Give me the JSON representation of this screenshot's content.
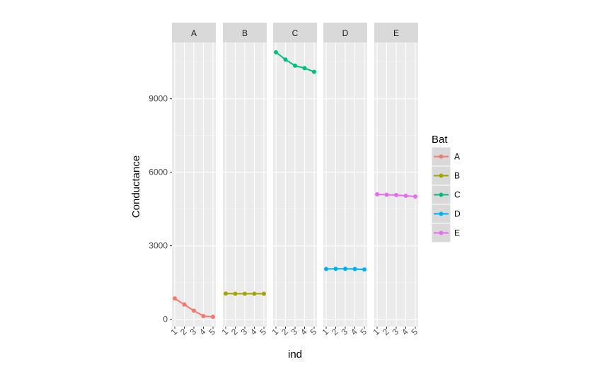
{
  "chart_data": {
    "type": "line",
    "facet_var": "Bat",
    "facets": [
      "A",
      "B",
      "C",
      "D",
      "E"
    ],
    "x_ticks": [
      "1",
      "2",
      "3",
      "4",
      "5"
    ],
    "xlabel": "ind",
    "ylabel": "Conductance",
    "y_ticks": [
      0,
      3000,
      6000,
      9000
    ],
    "ylim": [
      -300,
      11300
    ],
    "legend": {
      "title": "Bat",
      "placement": "right",
      "entries": [
        "A",
        "B",
        "C",
        "D",
        "E"
      ]
    },
    "series": [
      {
        "name": "A",
        "color": "#F8766D",
        "values": [
          850,
          600,
          350,
          130,
          100
        ]
      },
      {
        "name": "B",
        "color": "#A3A500",
        "values": [
          1050,
          1040,
          1040,
          1040,
          1040
        ]
      },
      {
        "name": "C",
        "color": "#00BF7D",
        "values": [
          10900,
          10600,
          10350,
          10250,
          10100
        ]
      },
      {
        "name": "D",
        "color": "#00B0F6",
        "values": [
          2050,
          2060,
          2060,
          2050,
          2030
        ]
      },
      {
        "name": "E",
        "color": "#E76BF3",
        "values": [
          5100,
          5080,
          5070,
          5040,
          5010
        ]
      }
    ],
    "grid": true
  }
}
